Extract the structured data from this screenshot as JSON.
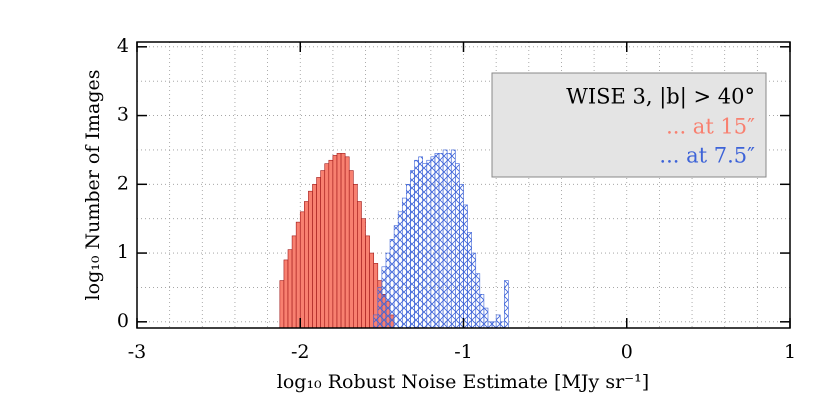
{
  "chart_data": {
    "type": "histogram",
    "xlabel": "log₁₀ Robust Noise Estimate [MJy sr⁻¹]",
    "ylabel": "log₁₀ Number of Images",
    "legend_title": "WISE 3, |b| > 40°",
    "legend": "upper right",
    "xlim": [
      -3,
      1
    ],
    "xticks": [
      -3,
      -2,
      -1,
      0,
      1
    ],
    "ylim": [
      -0.09,
      4.07
    ],
    "yticks": [
      0,
      1,
      2,
      3,
      4
    ],
    "grid": true,
    "x_minor_grid": [
      -2.8,
      -2.6,
      -2.4,
      -2.2,
      -1.8,
      -1.6,
      -1.4,
      -1.2,
      -0.8,
      -0.6,
      -0.4,
      -0.2,
      0.2,
      0.4,
      0.6,
      0.8
    ],
    "y_minor_grid": [
      0.5,
      1.5,
      2.5,
      3.5
    ],
    "series": [
      {
        "name": "... at 15″",
        "color": "#f88070",
        "edge_color": "#a01818",
        "fill": "solid",
        "bins": [
          -2.125,
          -2.1,
          -2.075,
          -2.05,
          -2.025,
          -2.0,
          -1.975,
          -1.95,
          -1.925,
          -1.9,
          -1.875,
          -1.85,
          -1.825,
          -1.8,
          -1.775,
          -1.75,
          -1.725,
          -1.7,
          -1.675,
          -1.65,
          -1.625,
          -1.6,
          -1.575,
          -1.55,
          -1.525,
          -1.5,
          -1.475,
          -1.45,
          -1.425
        ],
        "values": [
          0.6,
          0.9,
          1.05,
          1.25,
          1.45,
          1.6,
          1.75,
          1.9,
          2.0,
          2.1,
          2.2,
          2.3,
          2.35,
          2.42,
          2.45,
          2.45,
          2.4,
          2.2,
          2.0,
          1.75,
          1.5,
          1.25,
          1.0,
          0.85,
          0.6,
          0.4,
          0.3,
          0.1
        ]
      },
      {
        "name": "... at 7.5″",
        "color": "#3d63d8",
        "edge_color": "#3d63d8",
        "fill": "crosshatch",
        "bins": [
          -1.55,
          -1.525,
          -1.5,
          -1.475,
          -1.45,
          -1.425,
          -1.4,
          -1.375,
          -1.35,
          -1.325,
          -1.3,
          -1.275,
          -1.25,
          -1.225,
          -1.2,
          -1.175,
          -1.15,
          -1.125,
          -1.1,
          -1.075,
          -1.05,
          -1.025,
          -1.0,
          -0.975,
          -0.95,
          -0.925,
          -0.9,
          -0.875,
          -0.85,
          -0.825,
          -0.8,
          -0.775,
          -0.75,
          -0.725
        ],
        "values": [
          0.1,
          0.5,
          0.8,
          1.0,
          1.2,
          1.4,
          1.6,
          1.8,
          2.0,
          2.2,
          2.35,
          2.4,
          2.3,
          2.35,
          2.4,
          2.45,
          2.45,
          2.5,
          2.45,
          2.5,
          2.3,
          2.0,
          1.7,
          1.3,
          1.0,
          0.7,
          0.4,
          0.2,
          0.0,
          0.0,
          0.1,
          0.0,
          0.6
        ]
      }
    ]
  }
}
